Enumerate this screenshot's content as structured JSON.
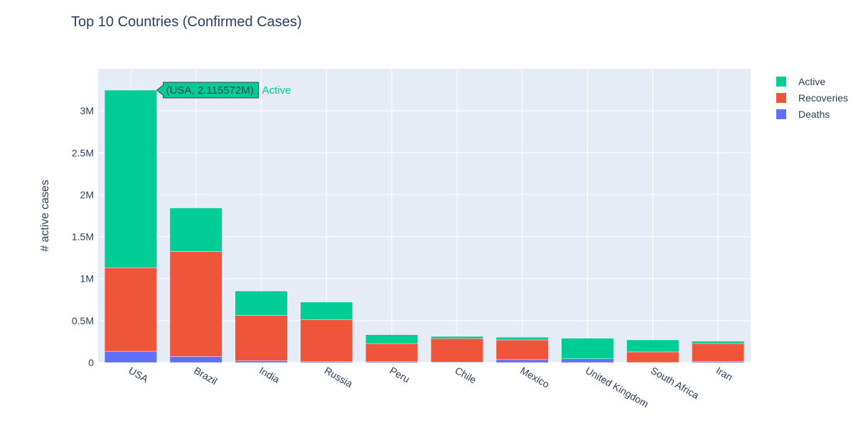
{
  "colors": {
    "active": "#00cc96",
    "recoveries": "#ef553b",
    "deaths": "#636efa",
    "plot_bg": "#e5ecf6",
    "grid": "#ffffff",
    "text": "#2a3f5f"
  },
  "chart_data": {
    "type": "bar",
    "barmode": "stack",
    "title": "Top 10 Countries (Confirmed Cases)",
    "xlabel": "",
    "ylabel": "# active cases",
    "ylim": [
      0,
      3400000
    ],
    "grid": true,
    "legend_position": "top-right",
    "categories": [
      "USA",
      "Brazil",
      "India",
      "Russia",
      "Peru",
      "Chile",
      "Mexico",
      "United Kingdom",
      "South Africa",
      "Iran"
    ],
    "series": [
      {
        "name": "Deaths",
        "color_key": "deaths",
        "values": [
          135000,
          72000,
          22000,
          11500,
          12000,
          6800,
          35000,
          44800,
          2200,
          12800
        ]
      },
      {
        "name": "Recoveries",
        "color_key": "recoveries",
        "values": [
          995000,
          1250000,
          540000,
          500000,
          215000,
          280000,
          235000,
          0,
          125000,
          215000
        ]
      },
      {
        "name": "Active",
        "color_key": "active",
        "values": [
          2115572,
          520000,
          290000,
          210000,
          105000,
          25000,
          32000,
          245000,
          143000,
          27000
        ]
      }
    ],
    "y_ticks": [
      {
        "value": 0,
        "label": "0"
      },
      {
        "value": 500000,
        "label": "0.5M"
      },
      {
        "value": 1000000,
        "label": "1M"
      },
      {
        "value": 1500000,
        "label": "1.5M"
      },
      {
        "value": 2000000,
        "label": "2M"
      },
      {
        "value": 2500000,
        "label": "2.5M"
      },
      {
        "value": 3000000,
        "label": "3M"
      }
    ],
    "legend_order": [
      "Active",
      "Recoveries",
      "Deaths"
    ],
    "hover": {
      "label": "(USA, 2.115572M)",
      "series": "Active",
      "category": "USA"
    }
  }
}
